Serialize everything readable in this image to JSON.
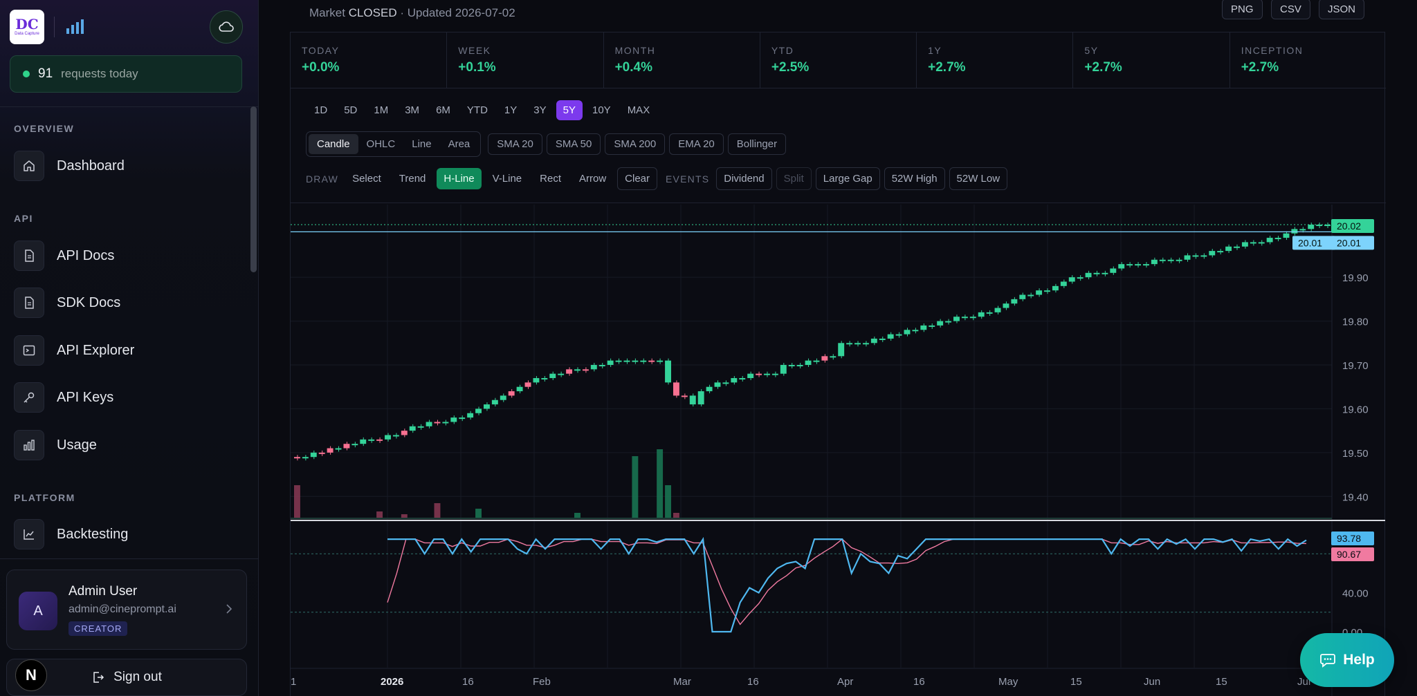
{
  "brand": {
    "logo_mark": "DC",
    "logo_sub": "Data Capture"
  },
  "sidebar": {
    "requests": {
      "count": "91",
      "label": "requests today"
    },
    "sections": [
      {
        "label": "OVERVIEW"
      },
      {
        "label": "API"
      },
      {
        "label": "PLATFORM"
      }
    ],
    "items": [
      {
        "label": "Dashboard",
        "icon": "home-icon"
      },
      {
        "label": "API Docs",
        "icon": "document-icon"
      },
      {
        "label": "SDK Docs",
        "icon": "document-icon"
      },
      {
        "label": "API Explorer",
        "icon": "terminal-icon"
      },
      {
        "label": "API Keys",
        "icon": "key-icon"
      },
      {
        "label": "Usage",
        "icon": "bar-chart-icon"
      },
      {
        "label": "Backtesting",
        "icon": "line-chart-icon"
      }
    ],
    "user": {
      "initial": "A",
      "name": "Admin User",
      "email": "admin@cineprompt.ai",
      "role": "CREATOR"
    },
    "signout_label": "Sign out",
    "n_badge": "N"
  },
  "header": {
    "market_prefix": "Market",
    "market_state": "CLOSED",
    "updated": "· Updated 2026-07-02",
    "exports": [
      "PNG",
      "CSV",
      "JSON"
    ]
  },
  "performance": [
    {
      "label": "TODAY",
      "value": "+0.0%"
    },
    {
      "label": "WEEK",
      "value": "+0.1%"
    },
    {
      "label": "MONTH",
      "value": "+0.4%"
    },
    {
      "label": "YTD",
      "value": "+2.5%"
    },
    {
      "label": "1Y",
      "value": "+2.7%"
    },
    {
      "label": "5Y",
      "value": "+2.7%"
    },
    {
      "label": "INCEPTION",
      "value": "+2.7%"
    }
  ],
  "ranges": {
    "items": [
      "1D",
      "5D",
      "1M",
      "3M",
      "6M",
      "YTD",
      "1Y",
      "3Y",
      "5Y",
      "10Y",
      "MAX"
    ],
    "active": "5Y"
  },
  "chart_types": {
    "items": [
      "Candle",
      "OHLC",
      "Line",
      "Area"
    ],
    "active": "Candle"
  },
  "indicators": [
    "SMA 20",
    "SMA 50",
    "SMA 200",
    "EMA 20",
    "Bollinger"
  ],
  "draw": {
    "label": "DRAW",
    "tools": [
      "Select",
      "Trend",
      "H-Line",
      "V-Line",
      "Rect",
      "Arrow"
    ],
    "active": "H-Line",
    "clear": "Clear"
  },
  "events": {
    "label": "EVENTS",
    "items": [
      "Dividend",
      "Split",
      "Large Gap",
      "52W High",
      "52W Low"
    ],
    "disabled": "Split"
  },
  "chart_data": {
    "type": "candlestick",
    "price_axis": {
      "ticks": [
        "19.40",
        "19.50",
        "19.60",
        "19.70",
        "19.80",
        "19.90"
      ],
      "ylim": [
        19.35,
        20.05
      ]
    },
    "x_ticks": [
      "1",
      "2026",
      "16",
      "Feb",
      "Mar",
      "16",
      "Apr",
      "16",
      "May",
      "15",
      "Jun",
      "15",
      "Jul"
    ],
    "closes": [
      19.49,
      19.49,
      19.5,
      19.5,
      19.51,
      19.51,
      19.52,
      19.52,
      19.53,
      19.53,
      19.53,
      19.54,
      19.54,
      19.55,
      19.56,
      19.56,
      19.57,
      19.57,
      19.57,
      19.58,
      19.58,
      19.59,
      19.6,
      19.61,
      19.62,
      19.63,
      19.64,
      19.65,
      19.66,
      19.67,
      19.67,
      19.68,
      19.68,
      19.69,
      19.69,
      19.69,
      19.7,
      19.7,
      19.71,
      19.71,
      19.71,
      19.71,
      19.71,
      19.71,
      19.71,
      19.66,
      19.63,
      19.63,
      19.61,
      19.64,
      19.65,
      19.66,
      19.66,
      19.67,
      19.67,
      19.68,
      19.68,
      19.68,
      19.68,
      19.7,
      19.7,
      19.7,
      19.71,
      19.71,
      19.72,
      19.72,
      19.75,
      19.75,
      19.75,
      19.75,
      19.76,
      19.76,
      19.77,
      19.77,
      19.78,
      19.78,
      19.79,
      19.79,
      19.8,
      19.8,
      19.81,
      19.81,
      19.81,
      19.82,
      19.82,
      19.83,
      19.84,
      19.85,
      19.86,
      19.86,
      19.87,
      19.87,
      19.88,
      19.89,
      19.9,
      19.9,
      19.91,
      19.91,
      19.91,
      19.92,
      19.93,
      19.93,
      19.93,
      19.93,
      19.94,
      19.94,
      19.94,
      19.94,
      19.95,
      19.95,
      19.95,
      19.96,
      19.96,
      19.97,
      19.97,
      19.98,
      19.98,
      19.98,
      19.99,
      19.99,
      20.0,
      20.01,
      20.01,
      20.02,
      20.02,
      20.02
    ],
    "down_bars": [
      0,
      3,
      4,
      6,
      10,
      13,
      17,
      26,
      28,
      33,
      35,
      43,
      46,
      47,
      56,
      64
    ],
    "volume_spikes": [
      0,
      10,
      13,
      17,
      22,
      34,
      41,
      44,
      45,
      46
    ],
    "hlines": [
      {
        "label": "20.02",
        "color": "#34d399"
      },
      {
        "label": "20.01",
        "color": "#7dd3fc",
        "left_label": "20.01"
      }
    ],
    "oscillator": {
      "ticks": [
        "40.00",
        "0.00"
      ],
      "ylim": [
        -5,
        105
      ],
      "levels": [
        80,
        20
      ],
      "fast_label": "93.78",
      "slow_label": "90.67",
      "fast": [
        95,
        95,
        95,
        95,
        80,
        95,
        95,
        80,
        95,
        82,
        95,
        95,
        95,
        95,
        85,
        80,
        95,
        85,
        95,
        95,
        95,
        95,
        95,
        85,
        95,
        95,
        80,
        95,
        95,
        92,
        95,
        95,
        95,
        80,
        95,
        0,
        0,
        0,
        30,
        45,
        40,
        55,
        65,
        70,
        72,
        65,
        95,
        95,
        95,
        95,
        60,
        80,
        72,
        70,
        60,
        78,
        75,
        85,
        95,
        95,
        95,
        95,
        95,
        95,
        95,
        95,
        95,
        95,
        95,
        95,
        95,
        95,
        95,
        95,
        95,
        95,
        95,
        95,
        80,
        95,
        88,
        95,
        95,
        85,
        95,
        90,
        95,
        85,
        95,
        95,
        92,
        95,
        83,
        95,
        93,
        95,
        85,
        95,
        88,
        94
      ]
    }
  },
  "help": {
    "label": "Help"
  }
}
